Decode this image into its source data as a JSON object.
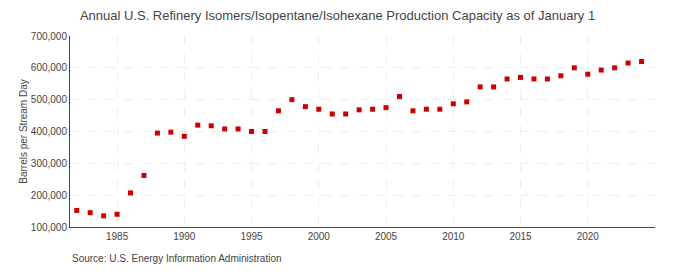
{
  "chart_data": {
    "type": "scatter",
    "title": "Annual U.S. Refinery Isomers/Isopentane/Isohexane Production Capacity as of January 1",
    "ylabel": "Barrels per Stream Day",
    "annotations": [
      "Source: U.S. Energy Information Administration"
    ],
    "x": [
      1982,
      1983,
      1984,
      1985,
      1986,
      1987,
      1988,
      1989,
      1990,
      1991,
      1992,
      1993,
      1994,
      1995,
      1996,
      1997,
      1998,
      1999,
      2000,
      2001,
      2002,
      2003,
      2004,
      2005,
      2006,
      2007,
      2008,
      2009,
      2010,
      2011,
      2012,
      2013,
      2014,
      2015,
      2016,
      2017,
      2018,
      2019,
      2020,
      2021,
      2022,
      2023,
      2024
    ],
    "values": [
      152000,
      145000,
      135000,
      140000,
      207000,
      262000,
      395000,
      398000,
      385000,
      420000,
      418000,
      408000,
      408000,
      400000,
      400000,
      465000,
      500000,
      478000,
      470000,
      455000,
      455000,
      468000,
      470000,
      475000,
      510000,
      465000,
      470000,
      470000,
      487000,
      493000,
      540000,
      540000,
      565000,
      570000,
      565000,
      565000,
      575000,
      600000,
      580000,
      593000,
      600000,
      615000,
      620000
    ],
    "color": "#cc0000",
    "marker": "square",
    "xlim": [
      1981.5,
      2025
    ],
    "xticks": [
      1985,
      1990,
      1995,
      2000,
      2005,
      2010,
      2015,
      2020
    ],
    "ylim": [
      100000,
      700000
    ],
    "yticks": [
      {
        "value": 100000,
        "label": "100,000"
      },
      {
        "value": 200000,
        "label": "200,000"
      },
      {
        "value": 300000,
        "label": "300,000"
      },
      {
        "value": 400000,
        "label": "400,000"
      },
      {
        "value": 500000,
        "label": "500,000"
      },
      {
        "value": 600000,
        "label": "600,000"
      },
      {
        "value": 700000,
        "label": "700,000"
      }
    ],
    "grid": true
  }
}
